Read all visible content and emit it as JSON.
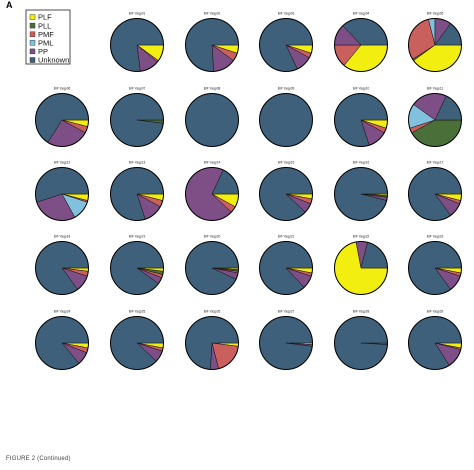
{
  "figure": {
    "panel_label": "A",
    "caption": "FIGURE 2 (Continued)"
  },
  "chart_data": {
    "type": "pie",
    "legend": {
      "placement": "top-left",
      "entries": [
        {
          "name": "PLF",
          "color": "#f2ee0f"
        },
        {
          "name": "PLL",
          "color": "#4a6f38"
        },
        {
          "name": "PMF",
          "color": "#c9605e"
        },
        {
          "name": "PML",
          "color": "#82c1dd"
        },
        {
          "name": "PP",
          "color": "#7e4f86"
        },
        {
          "name": "Unknown",
          "color": "#3e607a"
        }
      ]
    },
    "categories": [
      "PLF",
      "PLL",
      "PMF",
      "PML",
      "PP",
      "Unknown"
    ],
    "pies": [
      {
        "title": "BIF Yaqp01",
        "values": [
          10,
          0,
          1,
          0,
          12,
          77
        ]
      },
      {
        "title": "BIF Yaqp02",
        "values": [
          5,
          0,
          5,
          0,
          14,
          76
        ]
      },
      {
        "title": "BIF Yaqp03",
        "values": [
          5,
          0,
          3,
          0,
          10,
          82
        ]
      },
      {
        "title": "BIF Yaqp04",
        "values": [
          36,
          0,
          14,
          0,
          13,
          37
        ]
      },
      {
        "title": "BIF Yaqp05",
        "values": [
          40,
          1,
          30,
          4,
          10,
          15
        ]
      },
      {
        "title": "BIF Yaqp06",
        "values": [
          4,
          0,
          4,
          0,
          26,
          66
        ]
      },
      {
        "title": "BIF Yaqp07",
        "values": [
          0,
          2,
          0,
          0,
          0,
          98
        ]
      },
      {
        "title": "BIF Yaqp08",
        "values": [
          0,
          0,
          0,
          0,
          0,
          100
        ]
      },
      {
        "title": "BIF Yaqp09",
        "values": [
          0,
          0,
          0,
          0,
          0,
          100
        ]
      },
      {
        "title": "BIF Yaqp10",
        "values": [
          5,
          0,
          3,
          0,
          12,
          80
        ]
      },
      {
        "title": "BIF Yaqp11",
        "values": [
          0,
          42,
          3,
          15,
          22,
          18
        ]
      },
      {
        "title": "BIF Yaqp12",
        "values": [
          4,
          0,
          1,
          12,
          28,
          55
        ]
      },
      {
        "title": "BIF Yaqp13",
        "values": [
          4,
          0,
          4,
          0,
          12,
          80
        ]
      },
      {
        "title": "BIF Yaqp14",
        "values": [
          8,
          0,
          4,
          0,
          70,
          18
        ]
      },
      {
        "title": "BIF Yaqp15",
        "values": [
          3,
          0,
          3,
          0,
          6,
          88
        ]
      },
      {
        "title": "BIF Yaqp16",
        "values": [
          1,
          1,
          0,
          0,
          2,
          96
        ]
      },
      {
        "title": "BIF Yaqp17",
        "values": [
          4,
          0,
          2,
          0,
          9,
          85
        ]
      },
      {
        "title": "BIF Yaqp18",
        "values": [
          2,
          0,
          3,
          0,
          10,
          85
        ]
      },
      {
        "title": "BIF Yaqp19",
        "values": [
          2,
          2,
          2,
          0,
          4,
          90
        ]
      },
      {
        "title": "BIF Yaqp20",
        "values": [
          1,
          1,
          1,
          0,
          4,
          93
        ]
      },
      {
        "title": "BIF Yaqp21",
        "values": [
          3,
          0,
          2,
          0,
          8,
          87
        ]
      },
      {
        "title": "BIF Yaqp22",
        "values": [
          72,
          0,
          0,
          0,
          7,
          21
        ]
      },
      {
        "title": "BIF Yaqp23",
        "values": [
          3,
          0,
          2,
          0,
          10,
          85
        ]
      },
      {
        "title": "BIF Yaqp24",
        "values": [
          3,
          0,
          3,
          0,
          8,
          86
        ]
      },
      {
        "title": "BIF Yaqp25",
        "values": [
          3,
          0,
          2,
          0,
          7,
          88
        ]
      },
      {
        "title": "BIF Yaqp26",
        "values": [
          2,
          0,
          19,
          0,
          5,
          74
        ]
      },
      {
        "title": "BIF Yaqp27",
        "values": [
          1,
          0,
          0,
          0,
          1,
          98
        ]
      },
      {
        "title": "BIF Yaqp28",
        "values": [
          0,
          0,
          0,
          0,
          1,
          99
        ]
      },
      {
        "title": "BIF Yaqp29",
        "values": [
          3,
          0,
          1,
          0,
          12,
          84
        ]
      }
    ]
  }
}
